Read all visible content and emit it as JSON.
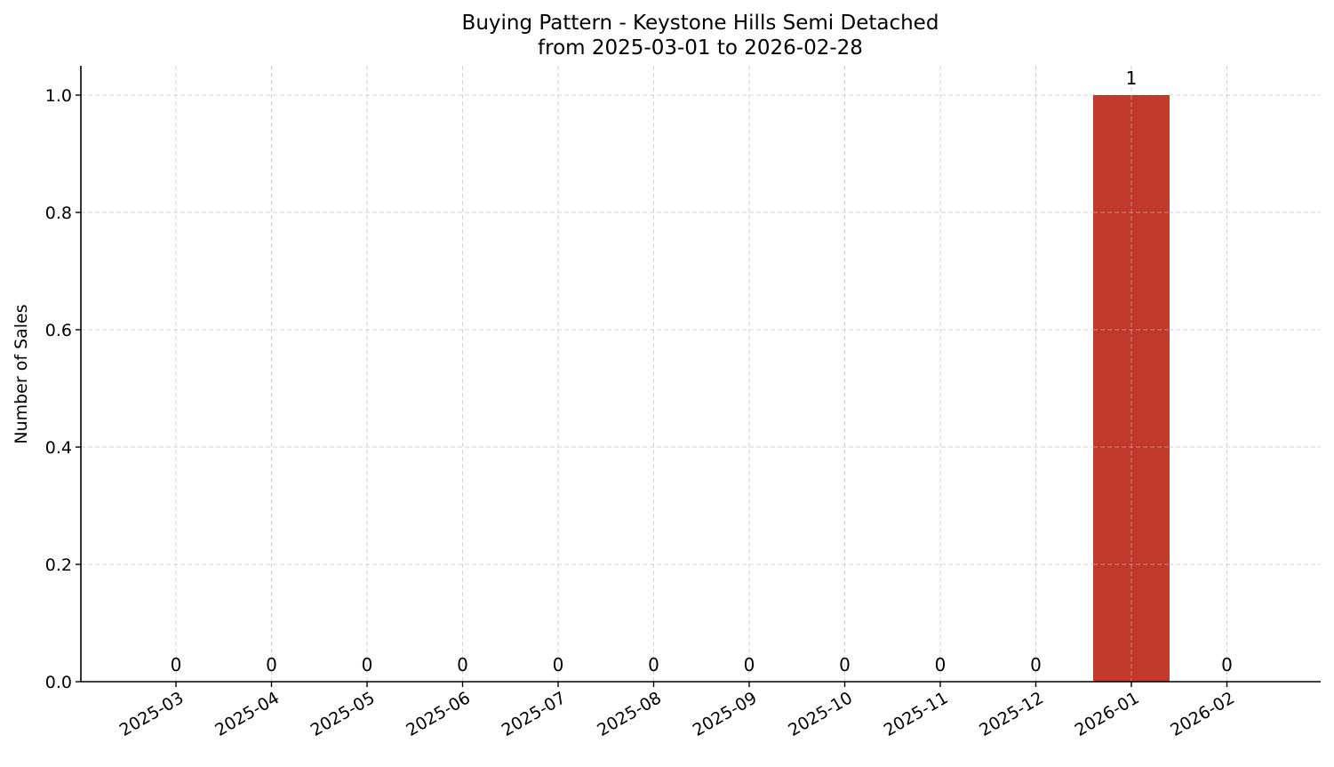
{
  "chart_data": {
    "type": "bar",
    "title": "Buying Pattern - Keystone Hills Semi Detached",
    "subtitle": "from 2025-03-01 to 2026-02-28",
    "xlabel": "",
    "ylabel": "Number of Sales",
    "categories": [
      "2025-03",
      "2025-04",
      "2025-05",
      "2025-06",
      "2025-07",
      "2025-08",
      "2025-09",
      "2025-10",
      "2025-11",
      "2025-12",
      "2026-01",
      "2026-02"
    ],
    "values": [
      0,
      0,
      0,
      0,
      0,
      0,
      0,
      0,
      0,
      0,
      1,
      0
    ],
    "value_labels": [
      "0",
      "0",
      "0",
      "0",
      "0",
      "0",
      "0",
      "0",
      "0",
      "0",
      "1",
      "0"
    ],
    "ylim": [
      0,
      1.05
    ],
    "yticks": [
      0.0,
      0.2,
      0.4,
      0.6,
      0.8,
      1.0
    ],
    "ytick_labels": [
      "0.0",
      "0.2",
      "0.4",
      "0.6",
      "0.8",
      "1.0"
    ],
    "grid": true,
    "legend": "none",
    "bar_color": "#c0392b",
    "x_tick_rotation": "diagonal"
  }
}
